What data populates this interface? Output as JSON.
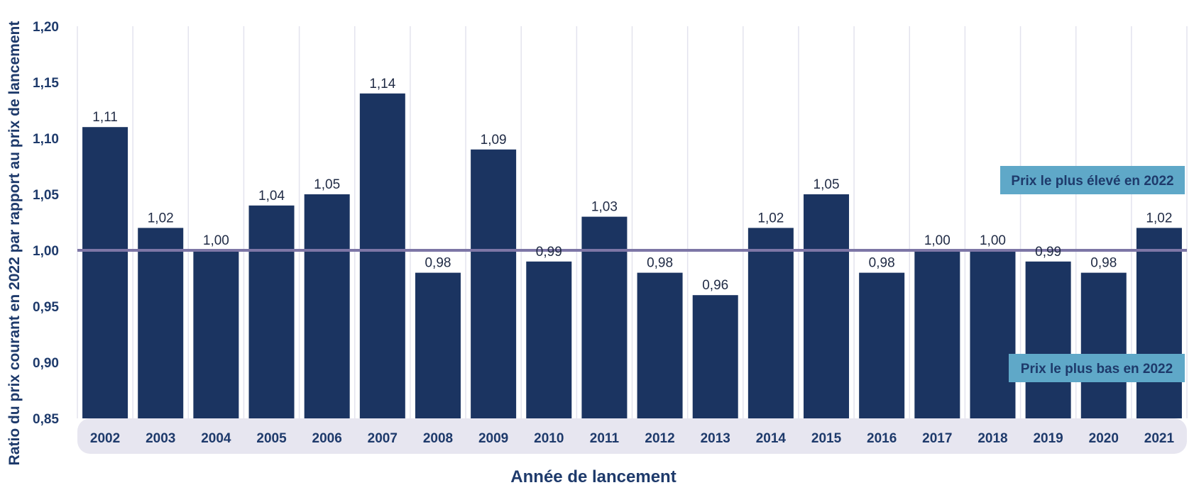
{
  "chart_data": {
    "type": "bar",
    "categories": [
      "2002",
      "2003",
      "2004",
      "2005",
      "2006",
      "2007",
      "2008",
      "2009",
      "2010",
      "2011",
      "2012",
      "2013",
      "2014",
      "2015",
      "2016",
      "2017",
      "2018",
      "2019",
      "2020",
      "2021"
    ],
    "values": [
      1.11,
      1.02,
      1.0,
      1.04,
      1.05,
      1.14,
      0.98,
      1.09,
      0.99,
      1.03,
      0.98,
      0.96,
      1.02,
      1.05,
      0.98,
      1.0,
      1.0,
      0.99,
      0.98,
      1.02
    ],
    "value_labels": [
      "1,11",
      "1,02",
      "1,00",
      "1,04",
      "1,05",
      "1,14",
      "0,98",
      "1,09",
      "0,99",
      "1,03",
      "0,98",
      "0,96",
      "1,02",
      "1,05",
      "0,98",
      "1,00",
      "1,00",
      "0,99",
      "0,98",
      "1,02"
    ],
    "ylim": [
      0.85,
      1.2
    ],
    "yticks": [
      1.2,
      1.15,
      1.1,
      1.05,
      1.0,
      0.95,
      0.9,
      0.85
    ],
    "ytick_labels": [
      "1,20",
      "1,15",
      "1,10",
      "1,05",
      "1,00",
      "0,95",
      "0,90",
      "0,85"
    ],
    "ylabel": "Ratio du prix courant en 2022 par rapport au prix de lancement",
    "xlabel": "Année de lancement",
    "reference_line": 1.0,
    "annotations": [
      "Prix le plus élevé en 2022",
      "Prix le plus bas en 2022"
    ],
    "grid": "vertical",
    "colors": {
      "bar": "#1b3461",
      "reference_line": "#7d76a6",
      "axis_text": "#1e3a6b",
      "category_band": "#e7e6f0",
      "gridline": "#e3e3ee",
      "annotation_box": "#5fa8c8"
    }
  }
}
